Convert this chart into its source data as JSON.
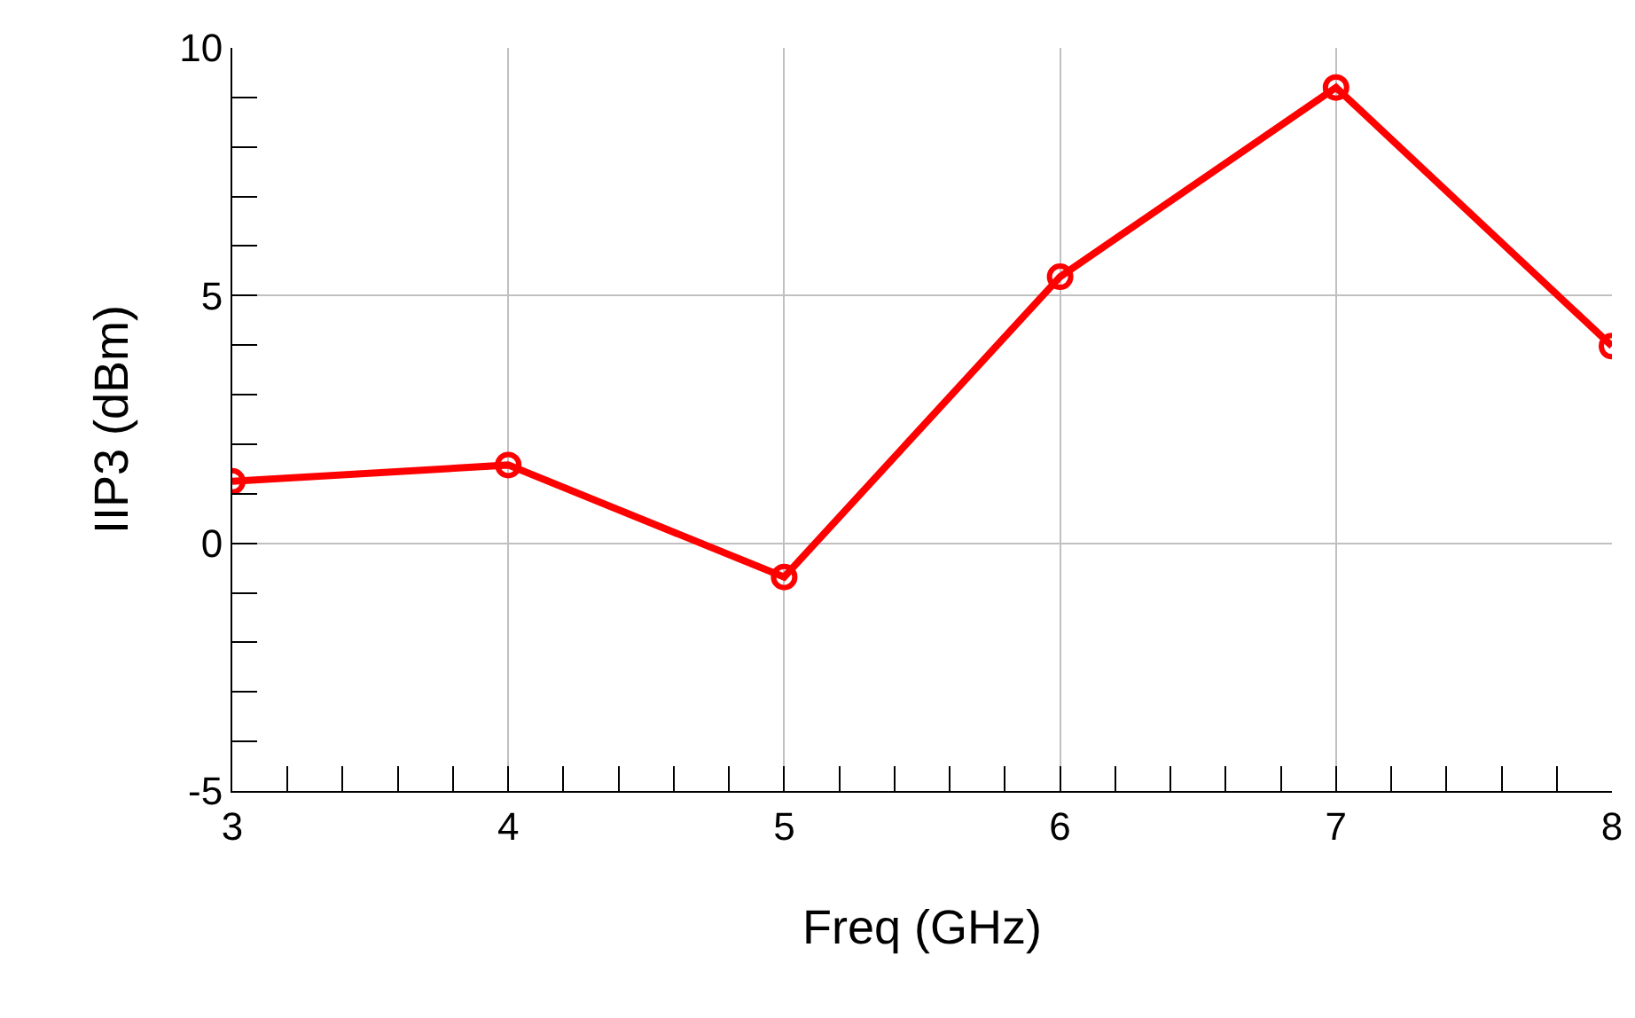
{
  "chart_data": {
    "type": "line",
    "xlabel": "Freq (GHz)",
    "ylabel": "IIP3 (dBm)",
    "x": [
      3,
      4,
      5,
      6,
      7,
      8
    ],
    "series": [
      {
        "color": "#ff0000",
        "values": [
          1.25,
          1.58,
          -0.68,
          5.38,
          9.2,
          3.98
        ]
      }
    ],
    "xlim": [
      3,
      8
    ],
    "ylim": [
      -5,
      10
    ],
    "xticks": [
      3,
      {
        "value": 3.2,
        "label": null
      },
      {
        "value": 3.4,
        "label": null
      },
      {
        "value": 3.6,
        "label": null
      },
      {
        "value": 3.8,
        "label": null
      },
      4,
      {
        "value": 4.2,
        "label": null
      },
      {
        "value": 4.4,
        "label": null
      },
      {
        "value": 4.6,
        "label": null
      },
      {
        "value": 4.8,
        "label": null
      },
      5,
      {
        "value": 5.2,
        "label": null
      },
      {
        "value": 5.4,
        "label": null
      },
      {
        "value": 5.6,
        "label": null
      },
      {
        "value": 5.8,
        "label": null
      },
      6,
      {
        "value": 6.2,
        "label": null
      },
      {
        "value": 6.4,
        "label": null
      },
      {
        "value": 6.6,
        "label": null
      },
      {
        "value": 6.8,
        "label": null
      },
      7,
      {
        "value": 7.2,
        "label": null
      },
      {
        "value": 7.4,
        "label": null
      },
      {
        "value": 7.6,
        "label": null
      },
      {
        "value": 7.8,
        "label": null
      },
      8
    ],
    "yticks": [
      -5,
      {
        "value": -4,
        "label": null
      },
      {
        "value": -3,
        "label": null
      },
      {
        "value": -2,
        "label": null
      },
      {
        "value": -1,
        "label": null
      },
      0,
      {
        "value": 1,
        "label": null
      },
      {
        "value": 2,
        "label": null
      },
      {
        "value": 3,
        "label": null
      },
      {
        "value": 4,
        "label": null
      },
      5,
      {
        "value": 6,
        "label": null
      },
      {
        "value": 7,
        "label": null
      },
      {
        "value": 8,
        "label": null
      },
      {
        "value": 9,
        "label": null
      },
      10
    ],
    "grid": true,
    "marker": "circle",
    "line_style": "solid"
  }
}
